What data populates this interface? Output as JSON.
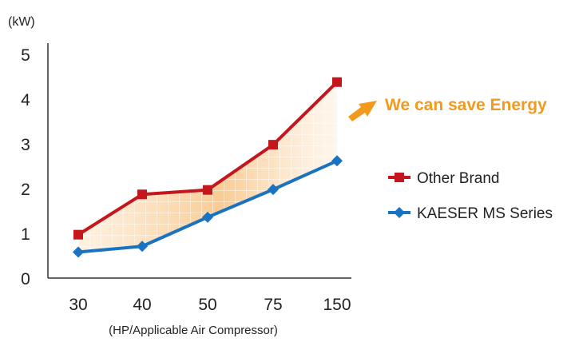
{
  "chart_data": {
    "type": "line",
    "categories": [
      "30",
      "40",
      "50",
      "75",
      "150"
    ],
    "series": [
      {
        "name": "Other Brand",
        "values": [
          0.97,
          1.87,
          1.97,
          2.98,
          4.38
        ],
        "color": "#c4161c",
        "marker": "square"
      },
      {
        "name": "KAESER MS Series",
        "values": [
          0.58,
          0.71,
          1.36,
          1.98,
          2.62
        ],
        "color": "#1a73c1",
        "marker": "diamond"
      }
    ],
    "ylim": [
      0,
      5
    ],
    "yticks": [
      "0",
      "1",
      "2",
      "3",
      "4",
      "5"
    ],
    "ylabel": "(kW)",
    "xlabel": "(HP/Applicable Air Compressor)",
    "annotation": "We can save Energy",
    "annotation_color": "#f39a1e",
    "gap_fill": "shaded grid between series (orange gradient)",
    "legend_position": "right",
    "grid": false
  }
}
